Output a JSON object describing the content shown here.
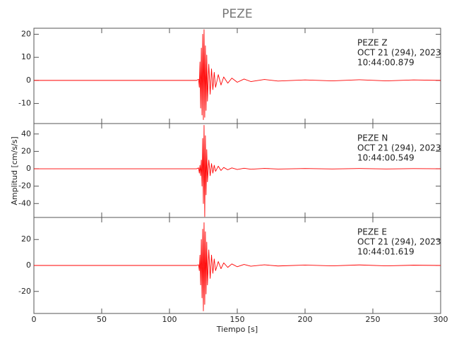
{
  "chart_data": {
    "type": "line",
    "title": "PEZE",
    "xlabel": "Tiempo [s]",
    "ylabel": "Amplitud [cm/s/s]",
    "xlim": [
      0,
      300
    ],
    "xticks": [
      0,
      50,
      100,
      150,
      200,
      250,
      300
    ],
    "panels": [
      {
        "annotation": [
          "PEZE   Z",
          "OCT 21 (294), 2023",
          "10:44:00.879"
        ],
        "ylim": [
          -18.7,
          22.6
        ],
        "yticks": [
          -10,
          0,
          10,
          20
        ],
        "color": "#ff0000",
        "x": [
          0,
          20,
          40,
          60,
          80,
          100,
          120,
          121.5,
          122,
          122.5,
          123,
          123.5,
          124,
          124.5,
          125,
          125.5,
          126,
          126.5,
          127,
          127.5,
          128,
          129,
          130,
          131,
          132,
          133,
          134,
          136,
          138,
          140,
          143,
          146,
          150,
          155,
          160,
          170,
          180,
          200,
          220,
          240,
          260,
          280,
          300
        ],
        "values": [
          0,
          0,
          0,
          0,
          0,
          0,
          0,
          0.5,
          -3,
          8,
          -12,
          14,
          -15,
          20,
          -17,
          22,
          -16,
          15,
          -13,
          11,
          -9,
          7,
          -6,
          5,
          -4,
          3.5,
          -3,
          2.5,
          -2,
          1.5,
          -1.2,
          1,
          -0.8,
          0.6,
          -0.5,
          0.4,
          -0.3,
          0.2,
          -0.2,
          0.3,
          -0.2,
          0.2,
          0
        ]
      },
      {
        "annotation": [
          "PEZE   N",
          "OCT 21 (294), 2023",
          "10:44:00.549"
        ],
        "ylim": [
          -56,
          52
        ],
        "yticks": [
          -40,
          -20,
          0,
          20,
          40
        ],
        "color": "#ff0000",
        "x": [
          0,
          20,
          40,
          60,
          80,
          100,
          120,
          121.5,
          122,
          122.5,
          123,
          123.5,
          124,
          124.5,
          125,
          125.5,
          126,
          126.5,
          127,
          127.5,
          128,
          129,
          130,
          131,
          132,
          133,
          134,
          136,
          138,
          140,
          143,
          146,
          150,
          155,
          160,
          170,
          180,
          200,
          220,
          240,
          260,
          280,
          300
        ],
        "values": [
          0,
          0,
          0,
          0,
          0,
          0,
          0,
          1,
          -5,
          4,
          -8,
          10,
          -20,
          35,
          -40,
          50,
          -55,
          38,
          -30,
          22,
          -15,
          10,
          -8,
          6,
          -5,
          4,
          -3,
          3,
          -2,
          1.5,
          -1.2,
          1,
          -0.8,
          0.6,
          -0.5,
          0.4,
          -0.3,
          0.3,
          -0.2,
          0.3,
          -0.2,
          0.2,
          0
        ]
      },
      {
        "annotation": [
          "PEZE   E",
          "OCT 21 (294), 2023",
          "10:44:01.619"
        ],
        "ylim": [
          -37,
          37
        ],
        "yticks": [
          -20,
          0,
          20
        ],
        "color": "#ff0000",
        "x": [
          0,
          20,
          40,
          60,
          80,
          100,
          120,
          121.5,
          122,
          122.5,
          123,
          123.5,
          124,
          124.5,
          125,
          125.5,
          126,
          126.5,
          127,
          127.5,
          128,
          129,
          130,
          131,
          132,
          133,
          134,
          136,
          138,
          140,
          143,
          146,
          150,
          155,
          160,
          170,
          180,
          200,
          220,
          240,
          260,
          280,
          300
        ],
        "values": [
          0,
          0,
          0,
          0,
          0,
          0,
          0,
          0.5,
          -4,
          8,
          -15,
          20,
          -25,
          28,
          -35,
          33,
          -30,
          26,
          -22,
          18,
          -15,
          12,
          -10,
          8,
          -6,
          5,
          -4,
          3,
          -2.5,
          2,
          -1.5,
          1.2,
          -1,
          0.8,
          -0.6,
          0.5,
          -0.4,
          0.3,
          -0.3,
          0.4,
          -0.3,
          0.2,
          0
        ]
      }
    ]
  }
}
